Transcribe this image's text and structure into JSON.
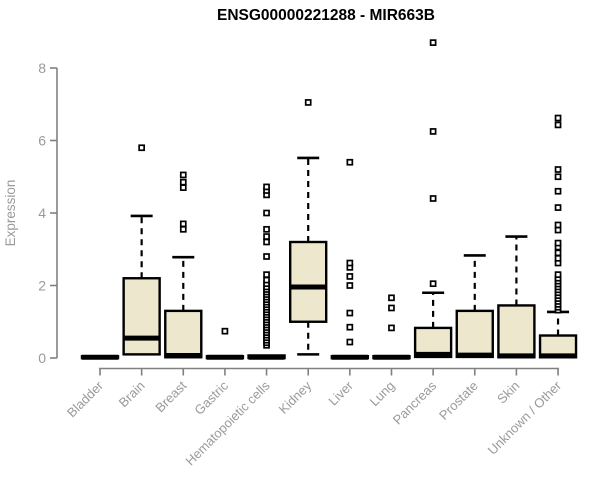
{
  "chart_data": {
    "type": "boxplot",
    "title": "ENSG00000221288 - MIR663B",
    "ylabel": "Expression",
    "xlabel": "",
    "ylim": [
      0,
      8.8
    ],
    "yticks": [
      0,
      2,
      4,
      6,
      8
    ],
    "grid": false,
    "legend": "none",
    "box_fill": "#ede8cd",
    "box_stroke": "#000000",
    "outlier_fill": "#ffffff",
    "axis_color": "#808080",
    "label_color": "#9a9a9a",
    "title_color": "#000000",
    "categories": [
      "Bladder",
      "Brain",
      "Breast",
      "Gastric",
      "Hematopoietic cells",
      "Kidney",
      "Liver",
      "Lung",
      "Pancreas",
      "Prostate",
      "Skin",
      "Unknown / Other"
    ],
    "series": [
      {
        "name": "Bladder",
        "q1": 0,
        "median": 0.02,
        "q3": 0.05,
        "whisker_low": 0,
        "whisker_high": 0.05,
        "outliers": []
      },
      {
        "name": "Brain",
        "q1": 0.1,
        "median": 0.55,
        "q3": 2.2,
        "whisker_low": 0.05,
        "whisker_high": 3.92,
        "outliers": [
          5.8
        ]
      },
      {
        "name": "Breast",
        "q1": 0.02,
        "median": 0.07,
        "q3": 1.3,
        "whisker_low": 0,
        "whisker_high": 2.78,
        "outliers": [
          3.55,
          3.7,
          4.7,
          4.85,
          5.05
        ]
      },
      {
        "name": "Gastric",
        "q1": 0,
        "median": 0.02,
        "q3": 0.05,
        "whisker_low": 0,
        "whisker_high": 0.05,
        "outliers": [
          0.74
        ]
      },
      {
        "name": "Hematopoietic cells",
        "q1": 0,
        "median": 0.02,
        "q3": 0.07,
        "whisker_low": 0,
        "whisker_high": 0.07,
        "outliers": [
          0.35,
          0.42,
          0.49,
          0.56,
          0.63,
          0.7,
          0.77,
          0.84,
          0.91,
          0.98,
          1.05,
          1.12,
          1.19,
          1.26,
          1.33,
          1.4,
          1.47,
          1.54,
          1.61,
          1.68,
          1.75,
          1.82,
          1.89,
          1.96,
          2.05,
          2.15,
          2.3,
          2.8,
          3.2,
          3.35,
          3.55,
          4.0,
          4.5,
          4.62,
          4.72
        ]
      },
      {
        "name": "Kidney",
        "q1": 1.0,
        "median": 1.96,
        "q3": 3.2,
        "whisker_low": 0.1,
        "whisker_high": 5.52,
        "outliers": [
          7.05
        ]
      },
      {
        "name": "Liver",
        "q1": 0,
        "median": 0.02,
        "q3": 0.05,
        "whisker_low": 0,
        "whisker_high": 0.05,
        "outliers": [
          0.44,
          0.85,
          1.24,
          2.0,
          2.25,
          2.5,
          2.62,
          5.4
        ]
      },
      {
        "name": "Lung",
        "q1": 0,
        "median": 0.02,
        "q3": 0.05,
        "whisker_low": 0,
        "whisker_high": 0.05,
        "outliers": [
          0.83,
          1.38,
          1.66
        ]
      },
      {
        "name": "Pancreas",
        "q1": 0.03,
        "median": 0.1,
        "q3": 0.83,
        "whisker_low": 0,
        "whisker_high": 1.8,
        "outliers": [
          2.05,
          4.4,
          6.25,
          8.7
        ]
      },
      {
        "name": "Prostate",
        "q1": 0.03,
        "median": 0.08,
        "q3": 1.3,
        "whisker_low": 0,
        "whisker_high": 2.83,
        "outliers": []
      },
      {
        "name": "Skin",
        "q1": 0.02,
        "median": 0.06,
        "q3": 1.45,
        "whisker_low": 0,
        "whisker_high": 3.35,
        "outliers": []
      },
      {
        "name": "Unknown / Other",
        "q1": 0.02,
        "median": 0.06,
        "q3": 0.62,
        "whisker_low": 0,
        "whisker_high": 1.27,
        "outliers": [
          1.32,
          1.4,
          1.48,
          1.56,
          1.64,
          1.72,
          1.8,
          1.88,
          1.96,
          2.04,
          2.12,
          2.2,
          2.3,
          2.62,
          2.75,
          2.9,
          3.06,
          3.17,
          3.53,
          3.67,
          4.15,
          4.6,
          5.0,
          5.2,
          6.43,
          6.62
        ]
      }
    ]
  }
}
